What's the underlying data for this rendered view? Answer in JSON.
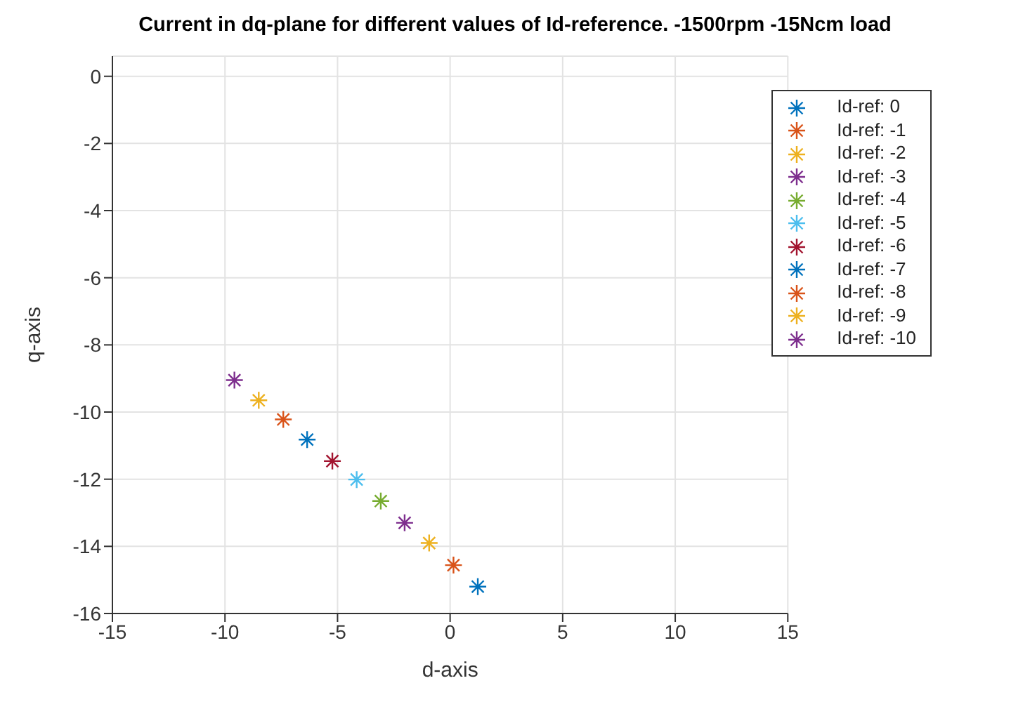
{
  "chart_data": {
    "type": "scatter",
    "title": "Current in dq-plane for different values of Id-reference. -1500rpm -15Ncm load",
    "xlabel": "d-axis",
    "ylabel": "q-axis",
    "xlim": [
      -15,
      15
    ],
    "xticks": [
      -15,
      -10,
      -5,
      0,
      5,
      10,
      15
    ],
    "ylim": [
      -16,
      0.6
    ],
    "yticks": [
      -16,
      -14,
      -12,
      -10,
      -8,
      -6,
      -4,
      -2,
      0
    ],
    "grid": true,
    "legend": "top right",
    "marker": "cross",
    "series": [
      {
        "name": "Id-ref: 0",
        "color": "#0072bd",
        "x": [
          1.23
        ],
        "values": [
          -15.2
        ]
      },
      {
        "name": "Id-ref: -1",
        "color": "#d95319",
        "x": [
          0.15
        ],
        "values": [
          -14.56
        ]
      },
      {
        "name": "Id-ref: -2",
        "color": "#edb120",
        "x": [
          -0.93
        ],
        "values": [
          -13.9
        ]
      },
      {
        "name": "Id-ref: -3",
        "color": "#7e2f8e",
        "x": [
          -2.02
        ],
        "values": [
          -13.3
        ]
      },
      {
        "name": "Id-ref: -4",
        "color": "#77ac30",
        "x": [
          -3.08
        ],
        "values": [
          -12.65
        ]
      },
      {
        "name": "Id-ref: -5",
        "color": "#4dbeee",
        "x": [
          -4.15
        ],
        "values": [
          -12.01
        ]
      },
      {
        "name": "Id-ref: -6",
        "color": "#a2142f",
        "x": [
          -5.23
        ],
        "values": [
          -11.46
        ]
      },
      {
        "name": "Id-ref: -7",
        "color": "#0072bd",
        "x": [
          -6.35
        ],
        "values": [
          -10.82
        ]
      },
      {
        "name": "Id-ref: -8",
        "color": "#d95319",
        "x": [
          -7.41
        ],
        "values": [
          -10.22
        ]
      },
      {
        "name": "Id-ref: -9",
        "color": "#edb120",
        "x": [
          -8.5
        ],
        "values": [
          -9.65
        ]
      },
      {
        "name": "Id-ref: -10",
        "color": "#7e2f8e",
        "x": [
          -9.58
        ],
        "values": [
          -9.05
        ]
      }
    ]
  }
}
